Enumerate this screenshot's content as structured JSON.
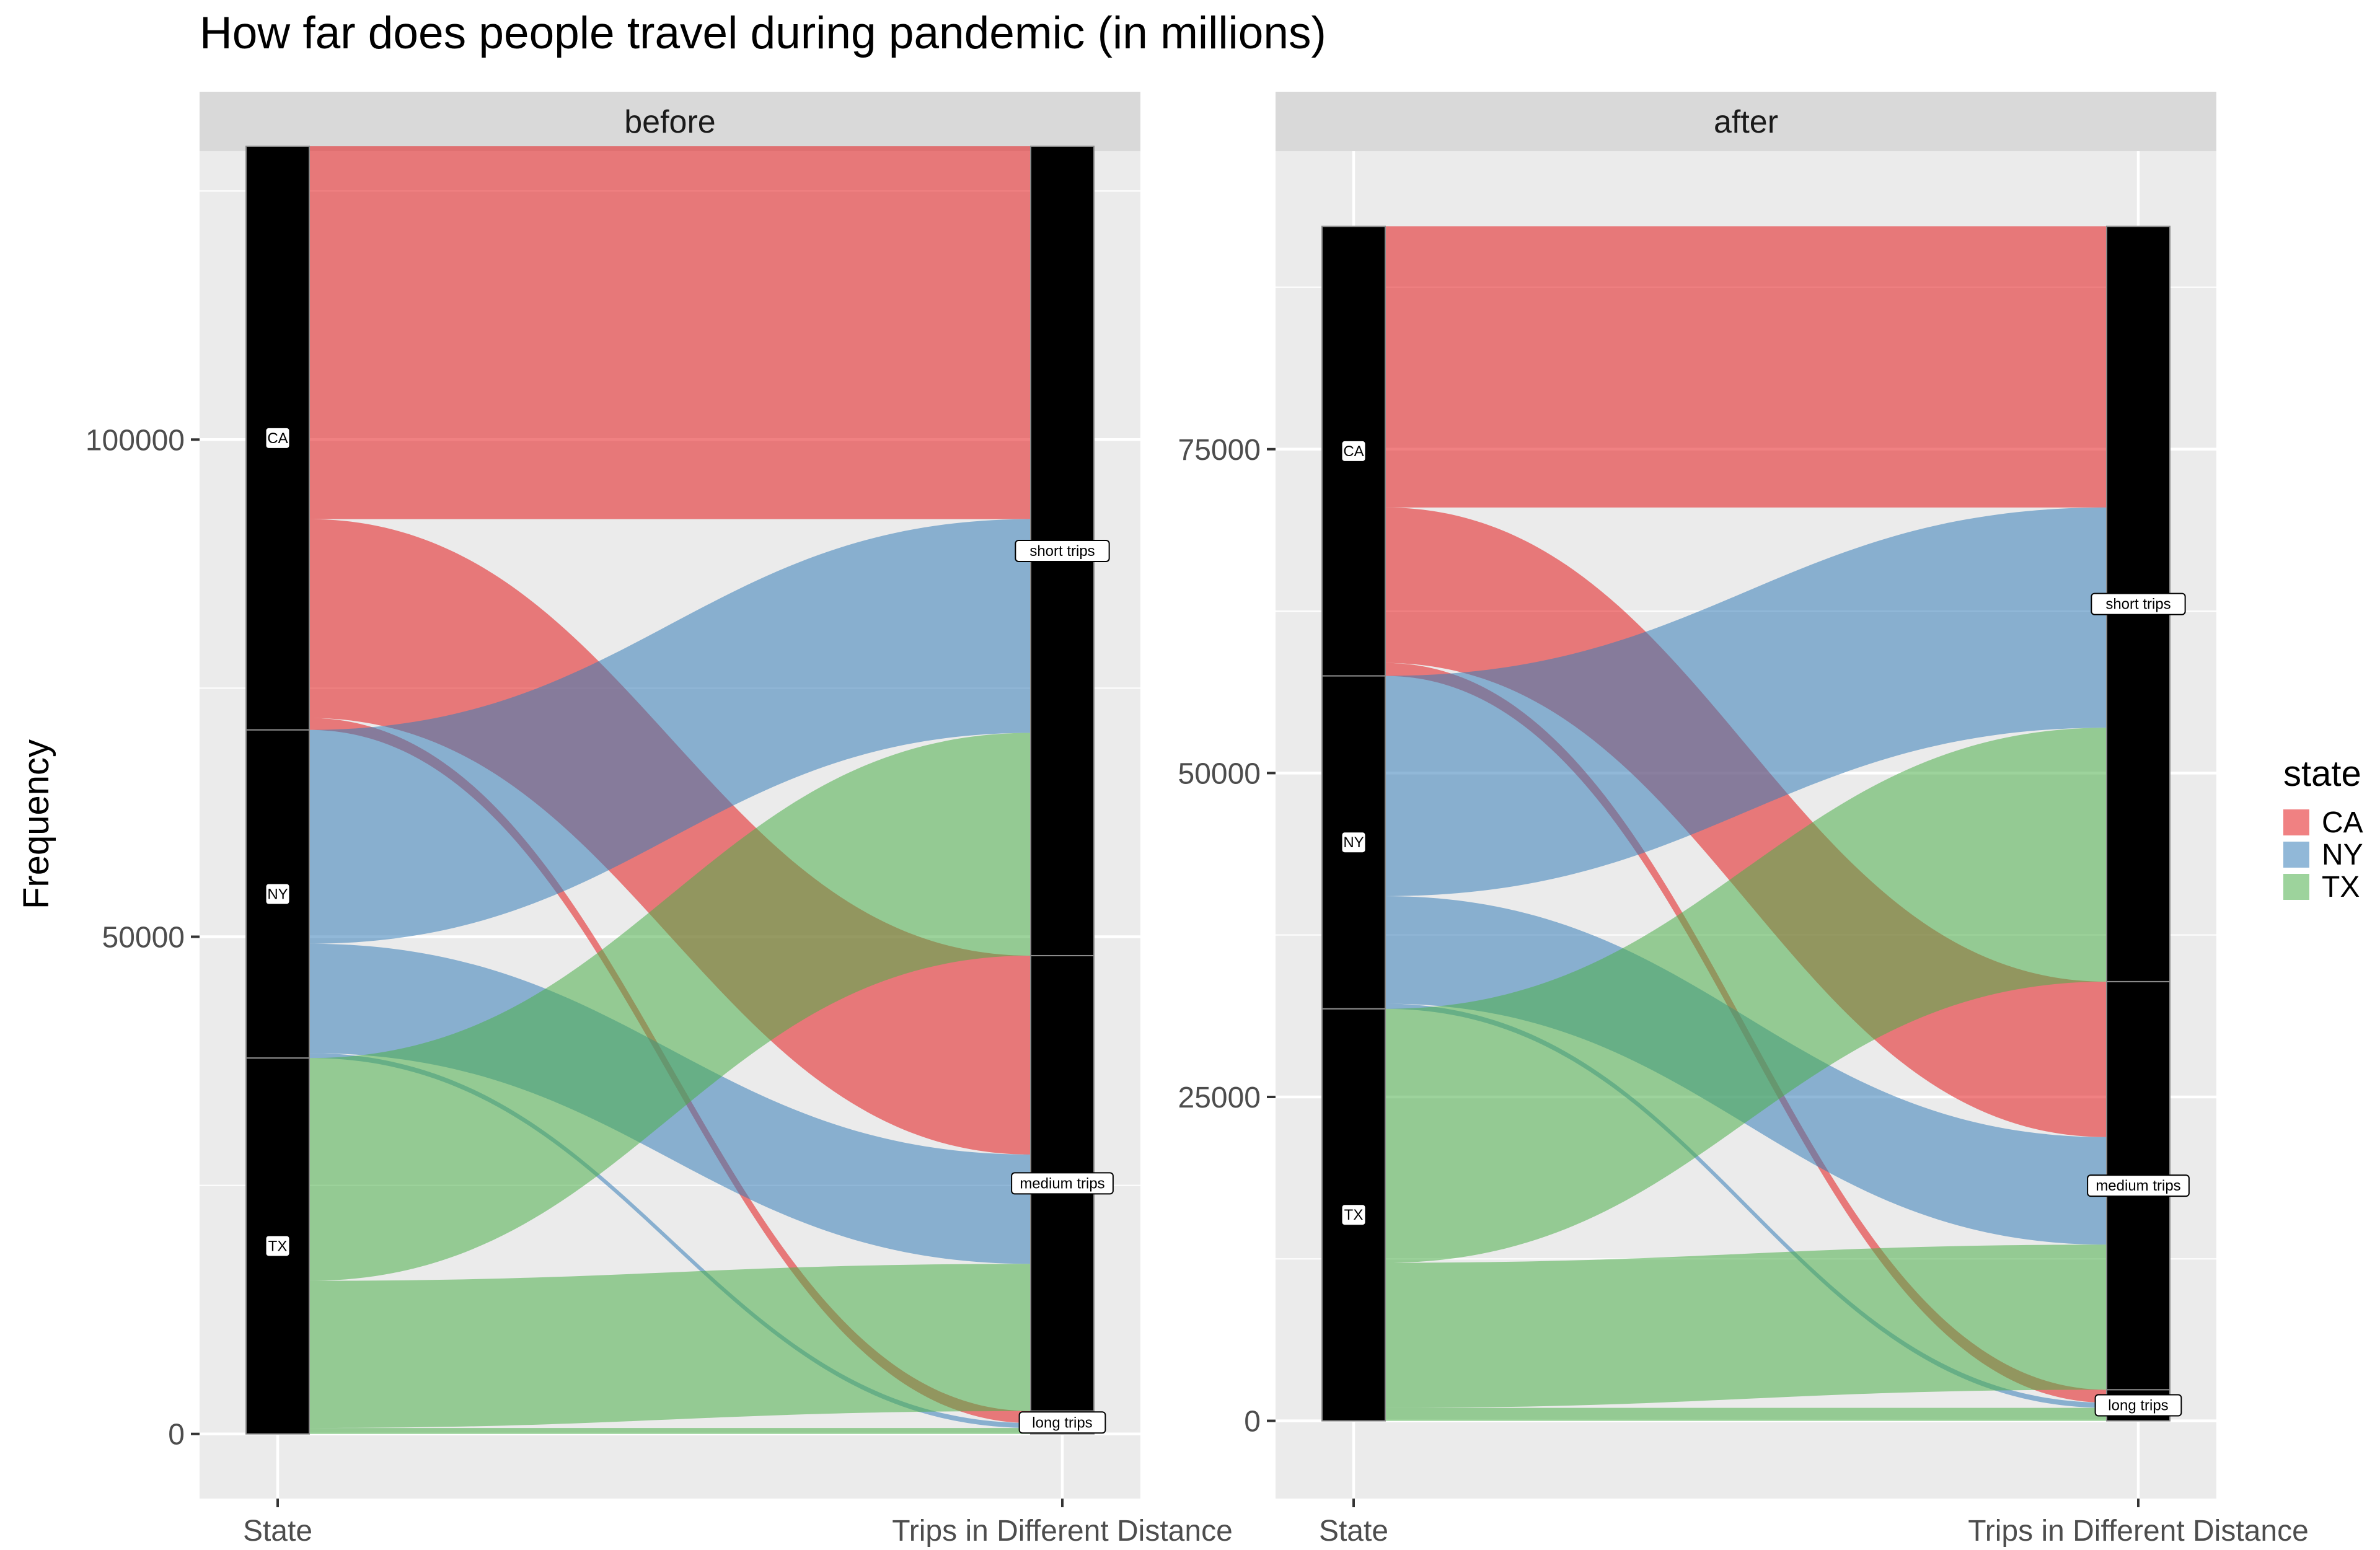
{
  "chart_data": {
    "type": "alluvial",
    "title": "How far does people travel during pandemic (in millions)",
    "ylabel": "Frequency",
    "axes": [
      "State",
      "Trips in Different Distance"
    ],
    "legend": {
      "title": "state",
      "position": "right",
      "items": [
        {
          "label": "CA",
          "color": "#E41A1C"
        },
        {
          "label": "NY",
          "color": "#377EB8"
        },
        {
          "label": "TX",
          "color": "#4DAF4A"
        }
      ]
    },
    "state_order": [
      "CA",
      "NY",
      "TX"
    ],
    "trip_order": [
      "short trips",
      "medium trips",
      "long trips"
    ],
    "grid": true,
    "panels": [
      {
        "label": "before",
        "ylim": [
          -6500,
          129000
        ],
        "y_ticks": [
          0,
          50000,
          100000
        ],
        "flows": [
          {
            "state": "CA",
            "trip": "short trips",
            "value": 37500
          },
          {
            "state": "CA",
            "trip": "medium trips",
            "value": 20000
          },
          {
            "state": "CA",
            "trip": "long trips",
            "value": 1200
          },
          {
            "state": "NY",
            "trip": "short trips",
            "value": 21500
          },
          {
            "state": "NY",
            "trip": "medium trips",
            "value": 11000
          },
          {
            "state": "NY",
            "trip": "long trips",
            "value": 500
          },
          {
            "state": "TX",
            "trip": "short trips",
            "value": 22400
          },
          {
            "state": "TX",
            "trip": "medium trips",
            "value": 14800
          },
          {
            "state": "TX",
            "trip": "long trips",
            "value": 600
          }
        ]
      },
      {
        "label": "after",
        "ylim": [
          -6000,
          98000
        ],
        "y_ticks": [
          0,
          25000,
          50000,
          75000
        ],
        "flows": [
          {
            "state": "CA",
            "trip": "short trips",
            "value": 21700
          },
          {
            "state": "CA",
            "trip": "medium trips",
            "value": 12000
          },
          {
            "state": "CA",
            "trip": "long trips",
            "value": 1000
          },
          {
            "state": "NY",
            "trip": "short trips",
            "value": 17000
          },
          {
            "state": "NY",
            "trip": "medium trips",
            "value": 8300
          },
          {
            "state": "NY",
            "trip": "long trips",
            "value": 400
          },
          {
            "state": "TX",
            "trip": "short trips",
            "value": 19600
          },
          {
            "state": "TX",
            "trip": "medium trips",
            "value": 11200
          },
          {
            "state": "TX",
            "trip": "long trips",
            "value": 1000
          }
        ]
      }
    ]
  }
}
